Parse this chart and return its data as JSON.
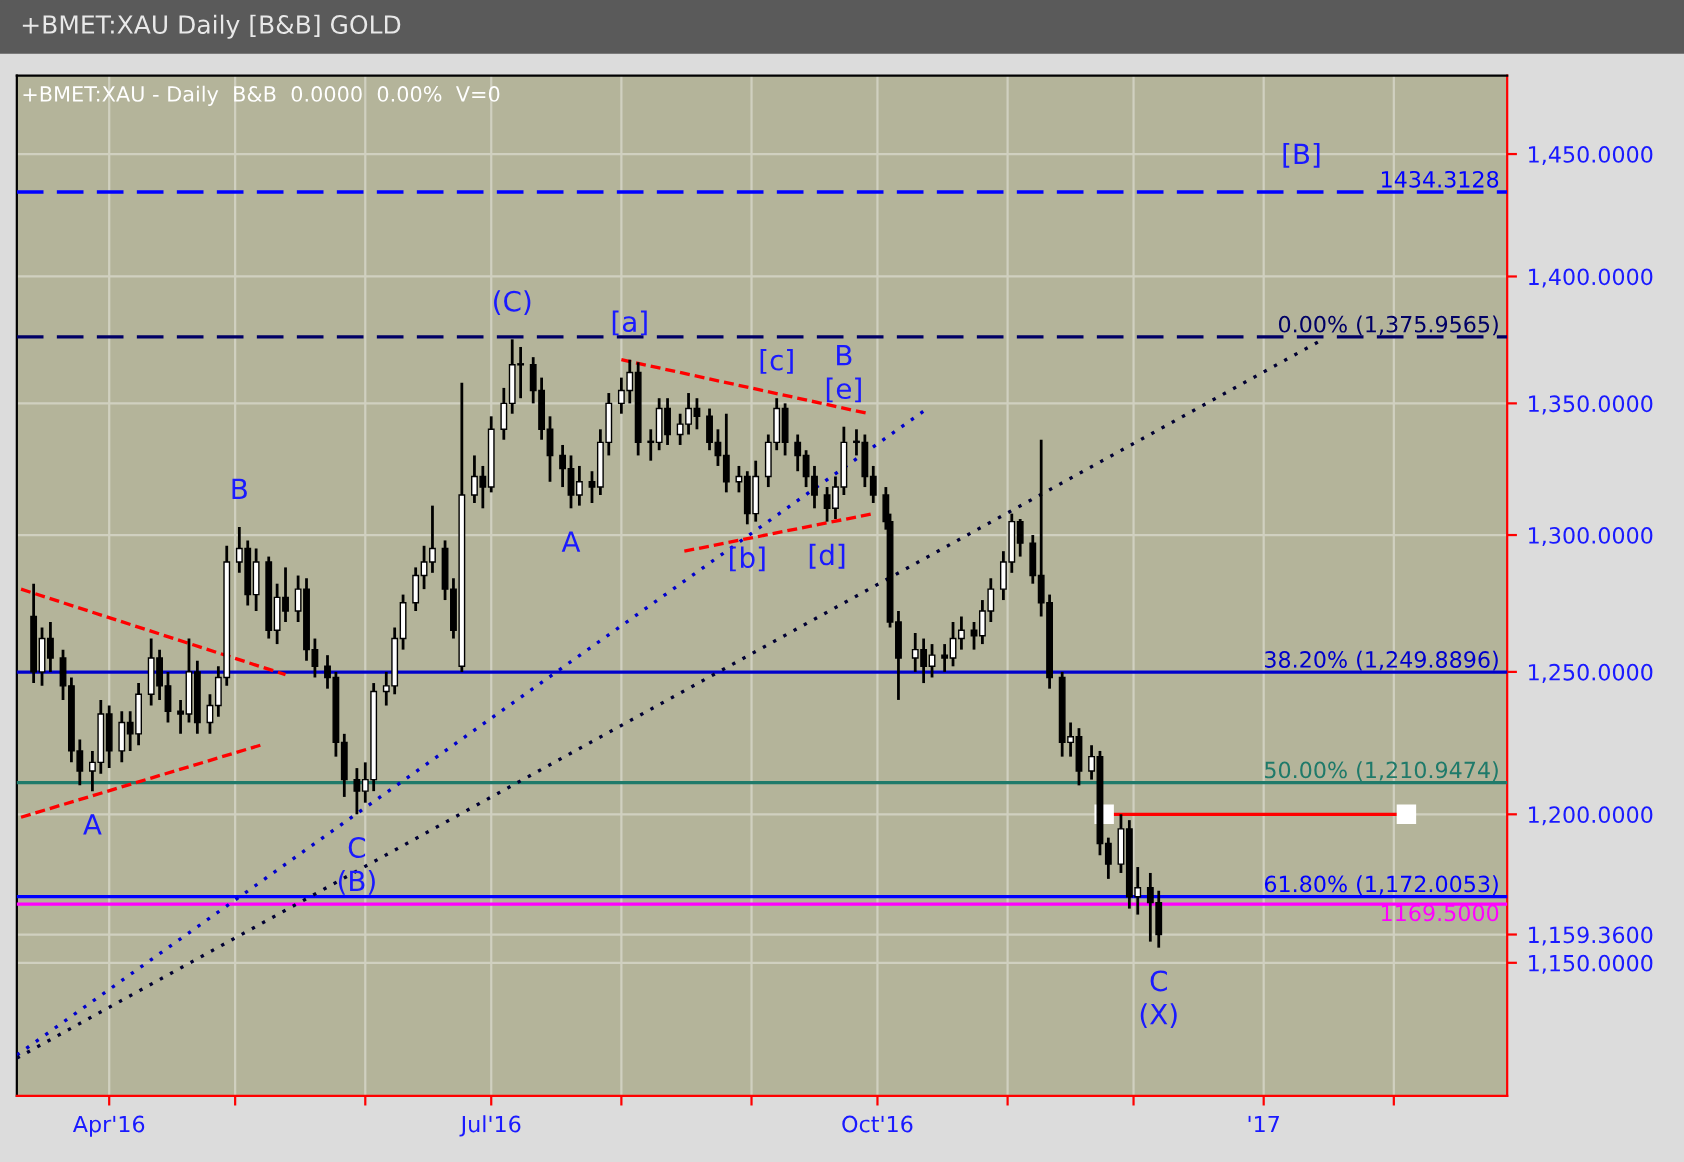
{
  "chart_data": {
    "type": "candlestick",
    "title": "+BMET:XAU Daily [B&B] GOLD",
    "subtitle": "+BMET:XAU - Daily  B&B  0.0000  0.00%  V=0",
    "log": true,
    "grid": true,
    "xlim": [
      "2016-03-10",
      "2017-02-28"
    ],
    "xticks": [
      {
        "value": "2016-04-01",
        "label": "Apr'16"
      },
      {
        "value": "2016-05-01",
        "label": null
      },
      {
        "value": "2016-06-01",
        "label": null
      },
      {
        "value": "2016-07-01",
        "label": "Jul'16"
      },
      {
        "value": "2016-08-01",
        "label": null
      },
      {
        "value": "2016-09-01",
        "label": null
      },
      {
        "value": "2016-10-01",
        "label": "Oct'16"
      },
      {
        "value": "2016-11-01",
        "label": null
      },
      {
        "value": "2016-12-01",
        "label": null
      },
      {
        "value": "2017-01-01",
        "label": "'17"
      },
      {
        "value": "2017-02-01",
        "label": null
      }
    ],
    "ylim": [
      1107,
      1483
    ],
    "yticks": [
      {
        "value": 1150,
        "label": "1,150.0000"
      },
      {
        "value": 1159.36,
        "label": "1,159.3600"
      },
      {
        "value": 1200,
        "label": "1,200.0000"
      },
      {
        "value": 1250,
        "label": "1,250.0000"
      },
      {
        "value": 1300,
        "label": "1,300.0000"
      },
      {
        "value": 1350,
        "label": "1,350.0000"
      },
      {
        "value": 1400,
        "label": "1,400.0000"
      },
      {
        "value": 1450,
        "label": "1,450.0000"
      }
    ],
    "x": [
      "2016-03-14",
      "2016-03-16",
      "2016-03-18",
      "2016-03-21",
      "2016-03-23",
      "2016-03-25",
      "2016-03-28",
      "2016-03-30",
      "2016-04-01",
      "2016-04-04",
      "2016-04-06",
      "2016-04-08",
      "2016-04-11",
      "2016-04-13",
      "2016-04-15",
      "2016-04-18",
      "2016-04-20",
      "2016-04-22",
      "2016-04-25",
      "2016-04-27",
      "2016-04-29",
      "2016-05-02",
      "2016-05-04",
      "2016-05-06",
      "2016-05-09",
      "2016-05-11",
      "2016-05-13",
      "2016-05-16",
      "2016-05-18",
      "2016-05-20",
      "2016-05-23",
      "2016-05-25",
      "2016-05-27",
      "2016-05-30",
      "2016-06-01",
      "2016-06-03",
      "2016-06-06",
      "2016-06-08",
      "2016-06-10",
      "2016-06-13",
      "2016-06-15",
      "2016-06-17",
      "2016-06-20",
      "2016-06-22",
      "2016-06-24",
      "2016-06-27",
      "2016-06-29",
      "2016-07-01",
      "2016-07-04",
      "2016-07-06",
      "2016-07-08",
      "2016-07-11",
      "2016-07-13",
      "2016-07-15",
      "2016-07-18",
      "2016-07-20",
      "2016-07-22",
      "2016-07-25",
      "2016-07-27",
      "2016-07-29",
      "2016-08-01",
      "2016-08-03",
      "2016-08-05",
      "2016-08-08",
      "2016-08-10",
      "2016-08-12",
      "2016-08-15",
      "2016-08-17",
      "2016-08-19",
      "2016-08-22",
      "2016-08-24",
      "2016-08-26",
      "2016-08-29",
      "2016-08-31",
      "2016-09-02",
      "2016-09-05",
      "2016-09-07",
      "2016-09-09",
      "2016-09-12",
      "2016-09-14",
      "2016-09-16",
      "2016-09-19",
      "2016-09-21",
      "2016-09-23",
      "2016-09-26",
      "2016-09-28",
      "2016-09-30",
      "2016-10-03",
      "2016-10-04",
      "2016-10-06",
      "2016-10-10",
      "2016-10-12",
      "2016-10-14",
      "2016-10-17",
      "2016-10-19",
      "2016-10-21",
      "2016-10-24",
      "2016-10-26",
      "2016-10-28",
      "2016-10-31",
      "2016-11-02",
      "2016-11-04",
      "2016-11-07",
      "2016-11-09",
      "2016-11-11",
      "2016-11-14",
      "2016-11-16",
      "2016-11-18",
      "2016-11-21",
      "2016-11-23",
      "2016-11-25",
      "2016-11-28",
      "2016-11-30",
      "2016-12-02",
      "2016-12-05",
      "2016-12-07"
    ],
    "ohlc": [
      [
        1270,
        1282,
        1246,
        1250
      ],
      [
        1250,
        1266,
        1245,
        1262
      ],
      [
        1262,
        1268,
        1250,
        1255
      ],
      [
        1255,
        1258,
        1240,
        1245
      ],
      [
        1245,
        1248,
        1218,
        1222
      ],
      [
        1222,
        1226,
        1210,
        1215
      ],
      [
        1215,
        1222,
        1208,
        1218
      ],
      [
        1218,
        1240,
        1214,
        1235
      ],
      [
        1235,
        1238,
        1216,
        1222
      ],
      [
        1222,
        1236,
        1218,
        1232
      ],
      [
        1232,
        1236,
        1222,
        1228
      ],
      [
        1228,
        1246,
        1224,
        1242
      ],
      [
        1242,
        1262,
        1238,
        1255
      ],
      [
        1255,
        1258,
        1240,
        1245
      ],
      [
        1245,
        1250,
        1232,
        1236
      ],
      [
        1236,
        1240,
        1228,
        1235
      ],
      [
        1235,
        1262,
        1232,
        1250
      ],
      [
        1250,
        1254,
        1228,
        1232
      ],
      [
        1232,
        1242,
        1228,
        1238
      ],
      [
        1238,
        1252,
        1234,
        1248
      ],
      [
        1248,
        1296,
        1245,
        1290
      ],
      [
        1290,
        1303,
        1286,
        1295
      ],
      [
        1295,
        1298,
        1274,
        1278
      ],
      [
        1278,
        1295,
        1272,
        1290
      ],
      [
        1290,
        1292,
        1262,
        1265
      ],
      [
        1265,
        1282,
        1260,
        1277
      ],
      [
        1277,
        1288,
        1268,
        1272
      ],
      [
        1272,
        1285,
        1268,
        1280
      ],
      [
        1280,
        1284,
        1254,
        1258
      ],
      [
        1258,
        1262,
        1248,
        1252
      ],
      [
        1252,
        1256,
        1244,
        1248
      ],
      [
        1248,
        1250,
        1220,
        1225
      ],
      [
        1225,
        1228,
        1206,
        1212
      ],
      [
        1212,
        1216,
        1200,
        1208
      ],
      [
        1208,
        1218,
        1204,
        1212
      ],
      [
        1212,
        1246,
        1208,
        1243
      ],
      [
        1243,
        1250,
        1238,
        1245
      ],
      [
        1245,
        1266,
        1242,
        1262
      ],
      [
        1262,
        1278,
        1258,
        1275
      ],
      [
        1275,
        1288,
        1272,
        1285
      ],
      [
        1285,
        1296,
        1280,
        1290
      ],
      [
        1290,
        1311,
        1286,
        1295
      ],
      [
        1295,
        1298,
        1276,
        1280
      ],
      [
        1280,
        1284,
        1262,
        1265
      ],
      [
        1252,
        1358,
        1250,
        1315
      ],
      [
        1315,
        1330,
        1312,
        1322
      ],
      [
        1322,
        1326,
        1310,
        1318
      ],
      [
        1318,
        1345,
        1316,
        1340
      ],
      [
        1340,
        1356,
        1336,
        1350
      ],
      [
        1350,
        1375,
        1346,
        1365
      ],
      [
        1365,
        1372,
        1352,
        1365
      ],
      [
        1365,
        1368,
        1350,
        1355
      ],
      [
        1355,
        1360,
        1336,
        1340
      ],
      [
        1340,
        1345,
        1320,
        1330
      ],
      [
        1330,
        1334,
        1318,
        1325
      ],
      [
        1325,
        1330,
        1310,
        1315
      ],
      [
        1315,
        1326,
        1311,
        1320
      ],
      [
        1320,
        1324,
        1312,
        1318
      ],
      [
        1318,
        1340,
        1315,
        1335
      ],
      [
        1335,
        1354,
        1330,
        1350
      ],
      [
        1350,
        1360,
        1346,
        1355
      ],
      [
        1355,
        1367,
        1350,
        1362
      ],
      [
        1362,
        1366,
        1330,
        1335
      ],
      [
        1335,
        1340,
        1328,
        1335
      ],
      [
        1335,
        1352,
        1332,
        1348
      ],
      [
        1348,
        1352,
        1334,
        1338
      ],
      [
        1338,
        1346,
        1334,
        1342
      ],
      [
        1342,
        1354,
        1338,
        1348
      ],
      [
        1348,
        1352,
        1340,
        1345
      ],
      [
        1345,
        1348,
        1332,
        1335
      ],
      [
        1335,
        1340,
        1326,
        1330
      ],
      [
        1330,
        1346,
        1316,
        1320
      ],
      [
        1320,
        1326,
        1316,
        1322
      ],
      [
        1322,
        1324,
        1304,
        1308
      ],
      [
        1308,
        1328,
        1305,
        1322
      ],
      [
        1322,
        1338,
        1318,
        1335
      ],
      [
        1335,
        1352,
        1332,
        1348
      ],
      [
        1348,
        1350,
        1330,
        1335
      ],
      [
        1335,
        1338,
        1324,
        1330
      ],
      [
        1330,
        1332,
        1318,
        1322
      ],
      [
        1322,
        1326,
        1310,
        1315
      ],
      [
        1315,
        1318,
        1305,
        1310
      ],
      [
        1310,
        1322,
        1306,
        1318
      ],
      [
        1318,
        1341,
        1315,
        1335
      ],
      [
        1335,
        1340,
        1330,
        1335
      ],
      [
        1335,
        1338,
        1318,
        1322
      ],
      [
        1322,
        1326,
        1312,
        1315
      ],
      [
        1315,
        1318,
        1302,
        1305
      ],
      [
        1305,
        1308,
        1266,
        1268
      ],
      [
        1268,
        1272,
        1240,
        1255
      ],
      [
        1255,
        1264,
        1250,
        1258
      ],
      [
        1258,
        1262,
        1246,
        1252
      ],
      [
        1252,
        1260,
        1248,
        1256
      ],
      [
        1256,
        1260,
        1250,
        1255
      ],
      [
        1255,
        1268,
        1252,
        1262
      ],
      [
        1262,
        1270,
        1258,
        1265
      ],
      [
        1265,
        1268,
        1258,
        1263
      ],
      [
        1263,
        1276,
        1260,
        1272
      ],
      [
        1272,
        1284,
        1268,
        1280
      ],
      [
        1280,
        1294,
        1276,
        1290
      ],
      [
        1290,
        1308,
        1286,
        1305
      ],
      [
        1305,
        1306,
        1292,
        1297
      ],
      [
        1297,
        1300,
        1282,
        1285
      ],
      [
        1285,
        1336,
        1270,
        1275
      ],
      [
        1275,
        1278,
        1244,
        1248
      ],
      [
        1248,
        1250,
        1220,
        1225
      ],
      [
        1225,
        1232,
        1220,
        1227
      ],
      [
        1227,
        1230,
        1210,
        1215
      ],
      [
        1215,
        1224,
        1212,
        1220
      ],
      [
        1220,
        1222,
        1186,
        1190
      ],
      [
        1190,
        1192,
        1178,
        1183
      ],
      [
        1183,
        1200,
        1180,
        1195
      ],
      [
        1195,
        1198,
        1168,
        1172
      ],
      [
        1172,
        1182,
        1166,
        1175
      ],
      [
        1175,
        1180,
        1157,
        1170
      ],
      [
        1170,
        1174,
        1155,
        1159.36
      ]
    ],
    "series": [
      {
        "type": "line",
        "x": [
          "2016-03-10",
          "2016-10-12"
        ],
        "values": [
          1120,
          1347
        ],
        "color": "#0000cc",
        "line_style": "dotted"
      },
      {
        "type": "line",
        "x": [
          "2016-03-10",
          "2017-01-14"
        ],
        "values": [
          1119,
          1374
        ],
        "color": "#000033",
        "line_style": "dotted"
      },
      {
        "type": "line",
        "x": [
          "2016-03-11",
          "2016-05-13"
        ],
        "values": [
          1280,
          1249
        ],
        "color": "#ff0000",
        "line_style": "dashed"
      },
      {
        "type": "line",
        "x": [
          "2016-03-11",
          "2016-05-07"
        ],
        "values": [
          1199,
          1224
        ],
        "color": "#ff0000",
        "line_style": "dashed"
      },
      {
        "type": "line",
        "x": [
          "2016-08-01",
          "2016-09-29"
        ],
        "values": [
          1367,
          1346
        ],
        "color": "#ff0000",
        "line_style": "dashed"
      },
      {
        "type": "line",
        "x": [
          "2016-08-16",
          "2016-09-30"
        ],
        "values": [
          1294,
          1308
        ],
        "color": "#ff0000",
        "line_style": "dashed"
      },
      {
        "type": "line",
        "x": [
          "2016-11-24",
          "2017-02-04"
        ],
        "values": [
          1200,
          1200
        ],
        "color": "#ff0000",
        "line_style": "solid",
        "marker": "square"
      }
    ],
    "ref_lines": [
      {
        "axis": "y",
        "value": 1434.3128,
        "label": "1434.3128",
        "color": "#0000ff",
        "line_style": "dashed"
      },
      {
        "axis": "y",
        "value": 1375.9565,
        "label": "0.00% (1,375.9565)",
        "color": "#000066",
        "line_style": "dashed"
      },
      {
        "axis": "y",
        "value": 1249.8896,
        "label": "38.20% (1,249.8896)",
        "color": "#0000cc",
        "line_style": "solid"
      },
      {
        "axis": "y",
        "value": 1210.9474,
        "label": "50.00% (1,210.9474)",
        "color": "#1f7a6a",
        "line_style": "solid"
      },
      {
        "axis": "y",
        "value": 1172.0053,
        "label": "61.80% (1,172.0053)",
        "color": "#0000ff",
        "line_style": "solid"
      },
      {
        "axis": "y",
        "value": 1169.5,
        "label": "1169.5000",
        "color": "#ff00ff",
        "line_style": "solid"
      }
    ],
    "annotations": [
      {
        "text": "(C)",
        "x": "2016-07-06",
        "y": 1375
      },
      {
        "text": "B",
        "x": "2016-05-02",
        "y": 1303
      },
      {
        "text": "A",
        "x": "2016-03-28",
        "y": 1208
      },
      {
        "text": "C",
        "x": "2016-05-30",
        "y": 1200
      },
      {
        "text": "(B)",
        "x": "2016-05-30",
        "y": 1200
      },
      {
        "text": "A",
        "x": "2016-07-20",
        "y": 1310
      },
      {
        "text": "[a]",
        "x": "2016-08-03",
        "y": 1367
      },
      {
        "text": "[b]",
        "x": "2016-08-31",
        "y": 1304
      },
      {
        "text": "[c]",
        "x": "2016-09-07",
        "y": 1352
      },
      {
        "text": "[d]",
        "x": "2016-09-19",
        "y": 1305
      },
      {
        "text": "[e]",
        "x": "2016-09-23",
        "y": 1341
      },
      {
        "text": "B",
        "x": "2016-09-23",
        "y": 1341
      },
      {
        "text": "C",
        "x": "2016-12-07",
        "y": 1155
      },
      {
        "text": "(X)",
        "x": "2016-12-07",
        "y": 1155
      },
      {
        "text": "[B]",
        "x": "2017-01-10",
        "y": 1434.3128
      }
    ]
  }
}
